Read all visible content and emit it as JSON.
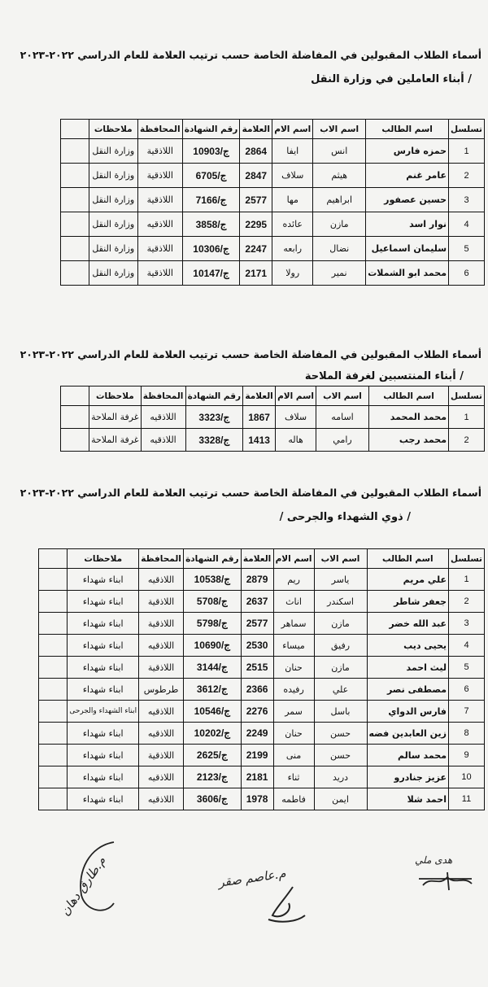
{
  "header_title": "أسماء الطلاب المقبولين في المفاضلة الخاصة حسب ترتيب العلامة للعام الدراسي ٢٠٢٢-٢٠٢٣",
  "columns": [
    "تسلسل",
    "اسم الطالب",
    "اسم الاب",
    "اسم الام",
    "العلامة",
    "رقم الشهادة",
    "المحافظة",
    "ملاحظات",
    ""
  ],
  "sections": [
    {
      "title": "أسماء الطلاب المقبولين في المفاضلة الخاصة حسب ترتيب العلامة للعام الدراسي ٢٠٢٢-٢٠٢٣",
      "subtitle": "/ أبناء العاملين في وزارة النقل",
      "rows": [
        [
          "1",
          "حمزه فارس",
          "انس",
          "ايفا",
          "2864",
          "ج/10903",
          "اللاذقية",
          "وزارة النقل"
        ],
        [
          "2",
          "عامر غنم",
          "هيثم",
          "سلاف",
          "2847",
          "ج/6705",
          "اللاذقية",
          "وزارة النقل"
        ],
        [
          "3",
          "حسين عصفور",
          "ابراهيم",
          "مها",
          "2577",
          "ج/7166",
          "اللاذقية",
          "وزارة النقل"
        ],
        [
          "4",
          "نوار اسد",
          "مازن",
          "عائده",
          "2295",
          "ج/3858",
          "اللاذقيه",
          "وزارة النقل"
        ],
        [
          "5",
          "سليمان اسماعيل",
          "نضال",
          "رابعه",
          "2247",
          "ج/10306",
          "اللاذقية",
          "وزارة النقل"
        ],
        [
          "6",
          "محمد ابو الشملات",
          "نمير",
          "رولا",
          "2171",
          "ج/10147",
          "اللاذقية",
          "وزارة النقل"
        ]
      ]
    },
    {
      "title": "أسماء الطلاب المقبولين في المفاضلة الخاصة حسب ترتيب العلامة للعام الدراسي ٢٠٢٢-٢٠٢٣",
      "subtitle": "/ أبناء المنتسبين لغرفة الملاحة",
      "rows": [
        [
          "1",
          "محمد المحمد",
          "اسامه",
          "سلاف",
          "1867",
          "ج/3323",
          "اللاذقيه",
          "غرفة الملاحة"
        ],
        [
          "2",
          "محمد رجب",
          "رامي",
          "هاله",
          "1413",
          "ج/3328",
          "اللاذقيه",
          "غرفة الملاحة"
        ]
      ]
    },
    {
      "title": "أسماء الطلاب المقبولين في المفاضلة الخاصة حسب ترتيب العلامة للعام الدراسي ٢٠٢٢-٢٠٢٣",
      "subtitle": "/ ذوي الشهداء والجرحى /",
      "rows": [
        [
          "1",
          "علي مريم",
          "ياسر",
          "ريم",
          "2879",
          "ج/10538",
          "اللاذقيه",
          "ابناء شهداء"
        ],
        [
          "2",
          "جعفر شاطر",
          "اسكندر",
          "اناث",
          "2637",
          "ج/5708",
          "اللاذقية",
          "ابناء شهداء"
        ],
        [
          "3",
          "عبد الله خضر",
          "مازن",
          "سماهر",
          "2577",
          "ج/5798",
          "اللاذقية",
          "ابناء شهداء"
        ],
        [
          "4",
          "يحيى ديب",
          "رفيق",
          "ميساء",
          "2530",
          "ج/10690",
          "اللاذقيه",
          "ابناء شهداء"
        ],
        [
          "5",
          "ليث احمد",
          "مازن",
          "حنان",
          "2515",
          "ج/3144",
          "اللاذقية",
          "ابناء شهداء"
        ],
        [
          "6",
          "مصطفى نصر",
          "علي",
          "رفيده",
          "2366",
          "ج/3612",
          "طرطوس",
          "ابناء شهداء"
        ],
        [
          "7",
          "فارس الدواي",
          "باسل",
          "سمر",
          "2276",
          "ج/10546",
          "اللاذقيه",
          "ابناء الشهداء والجرحى"
        ],
        [
          "8",
          "زين العابدين فضه",
          "حسن",
          "حنان",
          "2249",
          "ج/10202",
          "اللاذقيه",
          "ابناء شهداء"
        ],
        [
          "9",
          "محمد سالم",
          "حسن",
          "منى",
          "2199",
          "ج/2625",
          "اللاذقية",
          "ابناء شهداء"
        ],
        [
          "10",
          "عزيز جنادرو",
          "دريد",
          "ثناء",
          "2181",
          "ج/2123",
          "اللاذقيه",
          "ابناء شهداء"
        ],
        [
          "11",
          "احمد شلا",
          "ايمن",
          "فاطمه",
          "1978",
          "ج/3606",
          "اللاذقيه",
          "ابناء شهداء"
        ]
      ]
    }
  ],
  "signatures": [
    "م.طارق دهان",
    "م.عاصم صقر",
    "هدى ملي"
  ]
}
